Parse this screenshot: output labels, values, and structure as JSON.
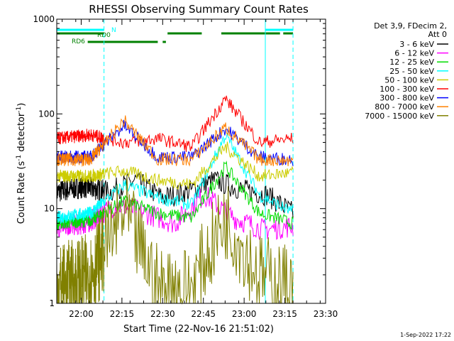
{
  "chart_data": {
    "type": "line",
    "title": "RHESSI Observing Summary Count Rates",
    "xlabel": "Start Time (22-Nov-16 21:51:02)",
    "ylabel_main": "Count Rate (s",
    "ylabel_sup1": "-1",
    "ylabel_mid": " detector",
    "ylabel_sup2": "-1",
    "ylabel_end": ")",
    "yscale": "log",
    "ylim": [
      1,
      1000
    ],
    "xlim_minutes": [
      21.85,
      23.5
    ],
    "x_ticks": [
      "22:00",
      "22:15",
      "22:30",
      "22:45",
      "23:00",
      "23:15",
      "23:30"
    ],
    "x_tick_values": [
      22.0,
      22.25,
      22.5,
      22.75,
      23.0,
      23.25,
      23.5
    ],
    "y_ticks": [
      "1",
      "10",
      "100",
      "1000"
    ],
    "y_tick_values": [
      1,
      10,
      100,
      1000
    ],
    "legend_header": [
      "Det 3,9, FDecim 2,",
      "Att 0"
    ],
    "legend_position": "top-right outside",
    "timestamp": "1-Sep-2022 17:22",
    "flags": [
      {
        "label": "N",
        "color": "#00ffff",
        "segments": [
          [
            21.85,
            22.14
          ],
          [
            23.13,
            23.3
          ]
        ]
      },
      {
        "label": "RD0",
        "color": "#008000",
        "segments": [
          [
            21.85,
            22.14
          ],
          [
            22.53,
            22.74
          ],
          [
            22.86,
            23.22
          ],
          [
            23.24,
            23.3
          ]
        ]
      },
      {
        "label": "RD6",
        "color": "#008000",
        "segments": [
          [
            22.04,
            22.47
          ],
          [
            22.5,
            22.52
          ]
        ]
      }
    ],
    "night_lines_solid": [
      21.85,
      23.13
    ],
    "night_lines_dashed": [
      22.14,
      23.3
    ],
    "series": [
      {
        "name": "3 - 6 keV",
        "color": "#000000",
        "values": [
          15,
          17,
          15,
          20,
          13,
          15,
          20,
          16,
          14,
          9
        ]
      },
      {
        "name": "6 - 12 keV",
        "color": "#ff00ff",
        "values": [
          6.5,
          7,
          11,
          9,
          7,
          14,
          8,
          6,
          6.5
        ]
      },
      {
        "name": "12 - 25 keV",
        "color": "#00dd00",
        "values": [
          7,
          7.5,
          12,
          9,
          8,
          28,
          9,
          7
        ]
      },
      {
        "name": "25 - 50 keV",
        "color": "#00ffff",
        "values": [
          8,
          9,
          18,
          13,
          11,
          60,
          14,
          9
        ]
      },
      {
        "name": "50 - 100 keV",
        "color": "#cccc00",
        "values": [
          22,
          22,
          25,
          20,
          18,
          45,
          22,
          24
        ]
      },
      {
        "name": "100 - 300 keV",
        "color": "#ff0000",
        "values": [
          55,
          60,
          50,
          55,
          45,
          145,
          50,
          55
        ]
      },
      {
        "name": "300 - 800 keV",
        "color": "#0000ff",
        "values": [
          35,
          35,
          75,
          35,
          35,
          70,
          35,
          33
        ]
      },
      {
        "name": "800 - 7000 keV",
        "color": "#ff8000",
        "values": [
          33,
          33,
          85,
          33,
          33,
          72,
          33,
          32
        ]
      },
      {
        "name": "7000 - 15000 keV",
        "color": "#808000",
        "values": [
          1.5,
          2,
          9,
          1.5,
          1.5,
          8,
          2,
          1.5
        ]
      }
    ]
  }
}
